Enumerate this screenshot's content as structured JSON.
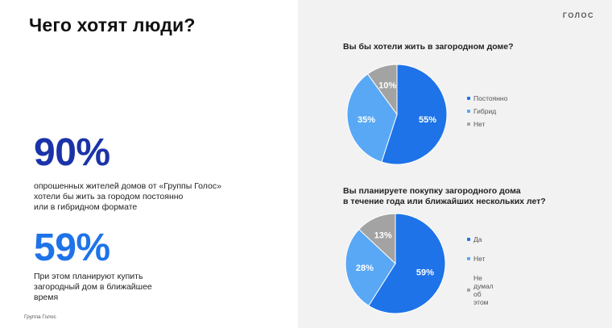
{
  "title": "Чего хотят люди?",
  "brand": "ГОЛОС",
  "stats": [
    {
      "value": "90%",
      "text": "опрошенных жителей домов от «Группы Голос»\nхотели бы жить за городом постоянно\nили в гибридном формате"
    },
    {
      "value": "59%",
      "text": "При этом планируют купить\nзагородный дом в ближайшее\nвремя"
    }
  ],
  "footer": "Группа Голос",
  "colors": {
    "dark_blue": "#1b33a8",
    "blue": "#1e73e8",
    "light_blue": "#58a8f5",
    "gray": "#a3a3a3"
  },
  "chart_data": [
    {
      "type": "pie",
      "title": "Вы бы хотели жить в загородном доме?",
      "categories": [
        "Постоянно",
        "Гибрид",
        "Нет"
      ],
      "values": [
        55,
        35,
        10
      ],
      "labels": [
        "55%",
        "35%",
        "10%"
      ],
      "colors": [
        "#1e73e8",
        "#58a8f5",
        "#a3a3a3"
      ],
      "legend": "right"
    },
    {
      "type": "pie",
      "title": "Вы планируете покупку загородного дома\nв течение года или ближайших нескольких лет?",
      "categories": [
        "Да",
        "Нет",
        "Не думал об\nэтом"
      ],
      "values": [
        59,
        28,
        13
      ],
      "labels": [
        "59%",
        "28%",
        "13%"
      ],
      "colors": [
        "#1e73e8",
        "#58a8f5",
        "#a3a3a3"
      ],
      "legend": "right"
    }
  ]
}
